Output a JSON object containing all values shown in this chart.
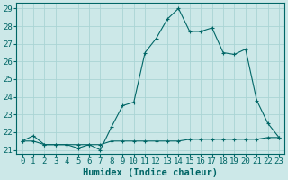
{
  "xlabel": "Humidex (Indice chaleur)",
  "ylabel": "",
  "bg_color": "#cce8e8",
  "grid_color": "#aad4d4",
  "line_color": "#006666",
  "x_min": 0,
  "x_max": 23,
  "y_min": 21,
  "y_max": 29,
  "series1_x": [
    0,
    1,
    2,
    3,
    4,
    5,
    6,
    7,
    8,
    9,
    10,
    11,
    12,
    13,
    14,
    15,
    16,
    17,
    18,
    19,
    20,
    21,
    22,
    23
  ],
  "series1_y": [
    21.5,
    21.8,
    21.3,
    21.3,
    21.3,
    21.1,
    21.3,
    21.0,
    22.3,
    23.5,
    23.7,
    26.5,
    27.3,
    28.4,
    29.0,
    27.7,
    27.7,
    27.9,
    26.5,
    26.4,
    26.7,
    23.8,
    22.5,
    21.7
  ],
  "series2_x": [
    0,
    1,
    2,
    3,
    4,
    5,
    6,
    7,
    8,
    9,
    10,
    11,
    12,
    13,
    14,
    15,
    16,
    17,
    18,
    19,
    20,
    21,
    22,
    23
  ],
  "series2_y": [
    21.5,
    21.5,
    21.3,
    21.3,
    21.3,
    21.3,
    21.3,
    21.3,
    21.5,
    21.5,
    21.5,
    21.5,
    21.5,
    21.5,
    21.5,
    21.6,
    21.6,
    21.6,
    21.6,
    21.6,
    21.6,
    21.6,
    21.7,
    21.7
  ],
  "tick_fontsize": 6.5,
  "label_fontsize": 7.5
}
